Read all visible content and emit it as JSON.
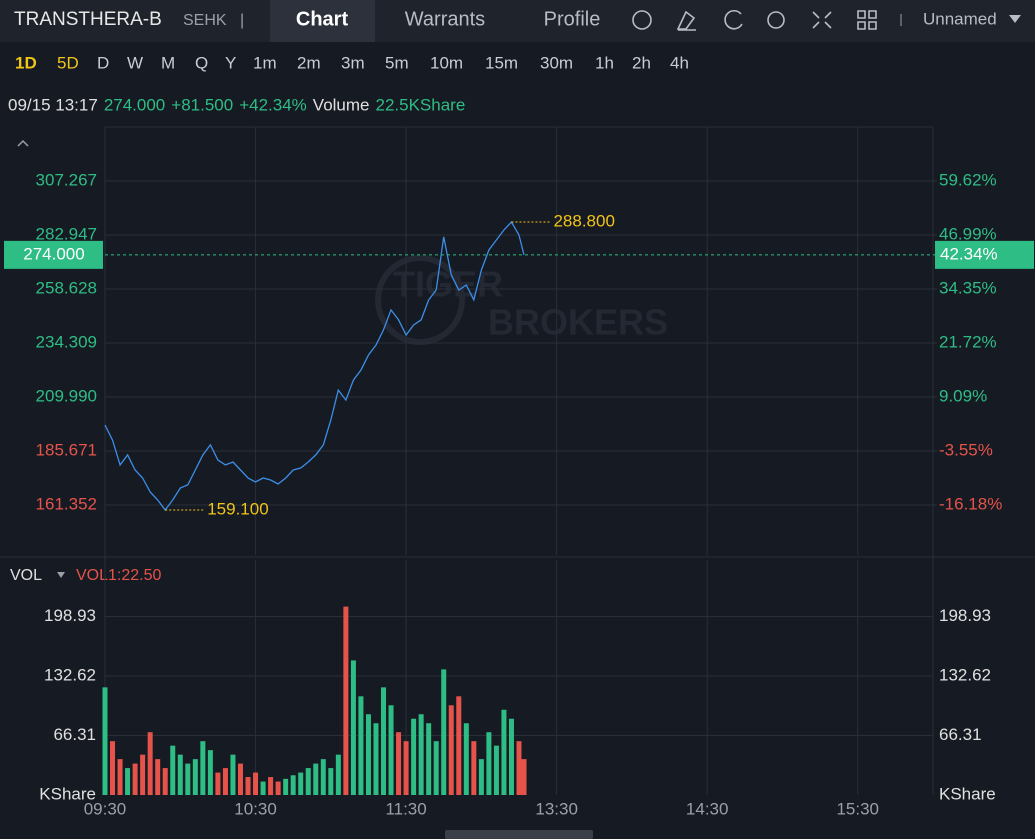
{
  "header": {
    "symbol": "TRANSTHERA-B",
    "exchange": "SEHK",
    "separator": "|",
    "tabs": [
      "Chart",
      "Warrants",
      "Profile"
    ],
    "layout_name": "Unnamed"
  },
  "timeframes": [
    "1D",
    "5D",
    "D",
    "W",
    "M",
    "Q",
    "Y",
    "1m",
    "2m",
    "3m",
    "5m",
    "10m",
    "15m",
    "30m",
    "1h",
    "2h",
    "4h"
  ],
  "info": {
    "datetime": "09/15 13:17",
    "price": "274.000",
    "change": "+81.500",
    "change_percent": "+42.34%",
    "volume_label": "Volume",
    "volume": "22.5KShare"
  },
  "watermark": [
    "TIGER",
    "BROKERS"
  ],
  "price_chart": {
    "type": "line",
    "color": "#3d8ee8",
    "up_color": "#2ebd85",
    "down_color": "#e5534b",
    "grid": true,
    "xlim": [
      0,
      330
    ],
    "xticks": [
      {
        "value": 0,
        "label": "09:30"
      },
      {
        "value": 60,
        "label": "10:30"
      },
      {
        "value": 120,
        "label": "11:30"
      },
      {
        "value": 180,
        "label": "13:30"
      },
      {
        "value": 240,
        "label": "14:30"
      },
      {
        "value": 300,
        "label": "15:30"
      }
    ],
    "ylim": [
      138.834,
      331.586
    ],
    "yticks": [
      307.267,
      282.947,
      258.628,
      234.309,
      {
        "value": 209.99,
        "label": "209.990"
      },
      185.671,
      161.352
    ],
    "y2lim": [
      -27.88,
      72.25
    ],
    "y2ticks": [
      {
        "value": 59.62,
        "label": "59.62%"
      },
      {
        "value": 46.99,
        "label": "46.99%"
      },
      {
        "value": 34.35,
        "label": "34.35%"
      },
      {
        "value": 21.72,
        "label": "21.72%"
      },
      {
        "value": 9.09,
        "label": "9.09%"
      },
      {
        "value": -3.55,
        "label": "-3.55%"
      },
      {
        "value": -16.18,
        "label": "-16.18%"
      }
    ],
    "x": [
      0,
      3,
      6,
      9,
      12,
      15,
      18,
      21,
      24,
      27,
      30,
      33,
      36,
      39,
      42,
      45,
      48,
      51,
      54,
      57,
      60,
      63,
      66,
      69,
      72,
      75,
      78,
      81,
      84,
      87,
      90,
      93,
      96,
      99,
      102,
      105,
      108,
      111,
      114,
      117,
      120,
      123,
      126,
      129,
      132,
      135,
      138,
      141,
      144,
      147,
      150,
      153,
      156,
      159,
      162,
      165,
      167
    ],
    "values": [
      197.4,
      190.6,
      179.4,
      183.9,
      177.1,
      173.5,
      167.2,
      163.6,
      159.1,
      163.6,
      169.0,
      170.4,
      177.1,
      183.9,
      188.4,
      181.6,
      179.4,
      180.7,
      177.1,
      173.5,
      171.7,
      173.5,
      172.6,
      170.8,
      173.5,
      177.1,
      178.0,
      180.7,
      183.9,
      188.4,
      199.6,
      213.1,
      208.6,
      217.6,
      222.1,
      228.9,
      233.4,
      240.2,
      249.2,
      244.7,
      237.9,
      242.4,
      244.7,
      253.7,
      258.2,
      282.1,
      264.9,
      258.2,
      260.4,
      253.7,
      267.2,
      276.2,
      280.7,
      285.2,
      288.8,
      282.9,
      274.0
    ],
    "last": {
      "value": 274,
      "label": "274.000"
    },
    "last_percent": {
      "value": 42.34,
      "label": "42.34%"
    },
    "high": {
      "value": 288.8,
      "label": "288.800"
    },
    "low": {
      "value": 159.1,
      "label": "159.100"
    }
  },
  "volume_chart": {
    "type": "bar",
    "title": "VOL",
    "indicator": "VOL1:22.50",
    "ylim": [
      0,
      228.5
    ],
    "yticks": [
      198.93,
      132.62,
      66.31,
      {
        "value": 0,
        "label": "KShare"
      }
    ],
    "values": [
      120,
      60,
      40,
      30,
      35,
      45,
      70,
      40,
      30,
      55,
      45,
      35,
      40,
      60,
      50,
      25,
      30,
      45,
      35,
      20,
      25,
      15,
      20,
      15,
      18,
      22,
      25,
      30,
      35,
      40,
      30,
      45,
      210,
      150,
      110,
      90,
      80,
      120,
      100,
      70,
      60,
      85,
      90,
      80,
      60,
      140,
      100,
      110,
      80,
      60,
      40,
      70,
      55,
      95,
      85,
      60,
      40
    ]
  }
}
